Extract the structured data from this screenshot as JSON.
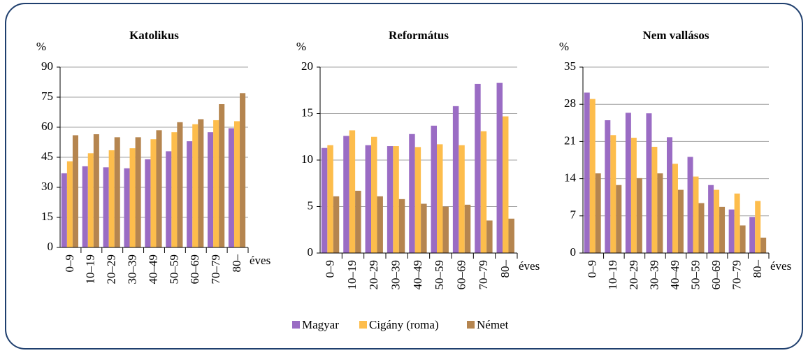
{
  "chart_data": [
    {
      "type": "bar",
      "title": "Katolikus",
      "y_label": "%",
      "x_label": "éves",
      "categories": [
        "0–9",
        "10–19",
        "20–29",
        "30–39",
        "40–49",
        "50–59",
        "60–69",
        "70–79",
        "80–"
      ],
      "series": [
        {
          "name": "Magyar",
          "color": "#9a6cc4",
          "values": [
            37,
            40.5,
            40,
            39.5,
            44,
            48,
            53,
            57.5,
            59.5
          ]
        },
        {
          "name": "Cigány (roma)",
          "color": "#fdbd4c",
          "values": [
            43,
            47,
            48.5,
            49.5,
            54,
            57.5,
            61.5,
            63.5,
            63
          ]
        },
        {
          "name": "Német",
          "color": "#b5854f",
          "values": [
            56,
            56.5,
            55,
            55,
            58.5,
            62.5,
            64,
            71.5,
            77
          ]
        }
      ],
      "ylim": [
        0,
        90
      ],
      "yticks": [
        0,
        15,
        30,
        45,
        60,
        75,
        90
      ],
      "grid": true
    },
    {
      "type": "bar",
      "title": "Református",
      "y_label": "%",
      "x_label": "éves",
      "categories": [
        "0–9",
        "10–19",
        "20–29",
        "30–39",
        "40–49",
        "50–59",
        "60–69",
        "70–79",
        "80–"
      ],
      "series": [
        {
          "name": "Magyar",
          "color": "#9a6cc4",
          "values": [
            11.3,
            12.6,
            11.6,
            11.5,
            12.8,
            13.7,
            15.8,
            18.2,
            18.3
          ]
        },
        {
          "name": "Cigány (roma)",
          "color": "#fdbd4c",
          "values": [
            11.6,
            13.2,
            12.5,
            11.5,
            11.4,
            11.7,
            11.6,
            13.1,
            14.7
          ]
        },
        {
          "name": "Német",
          "color": "#b5854f",
          "values": [
            6.1,
            6.7,
            6.1,
            5.8,
            5.3,
            5.0,
            5.2,
            3.5,
            3.7
          ]
        }
      ],
      "ylim": [
        0,
        20
      ],
      "yticks": [
        0,
        5,
        10,
        15,
        20
      ],
      "grid": true
    },
    {
      "type": "bar",
      "title": "Nem vallásos",
      "y_label": "%",
      "x_label": "éves",
      "categories": [
        "0–9",
        "10–19",
        "20–29",
        "30–39",
        "40–49",
        "50–59",
        "60–69",
        "70–79",
        "80–"
      ],
      "series": [
        {
          "name": "Magyar",
          "color": "#9a6cc4",
          "values": [
            30.2,
            25.0,
            26.4,
            26.3,
            21.8,
            18.1,
            12.8,
            8.2,
            6.8
          ]
        },
        {
          "name": "Cigány (roma)",
          "color": "#fdbd4c",
          "values": [
            29.0,
            22.2,
            21.7,
            20.0,
            16.8,
            14.4,
            11.9,
            11.2,
            9.8
          ]
        },
        {
          "name": "Német",
          "color": "#b5854f",
          "values": [
            15.0,
            12.8,
            14.1,
            15.0,
            11.9,
            9.4,
            8.7,
            5.2,
            2.9
          ]
        }
      ],
      "ylim": [
        0,
        35
      ],
      "yticks": [
        0,
        7,
        14,
        21,
        28,
        35
      ],
      "grid": true
    }
  ]
}
